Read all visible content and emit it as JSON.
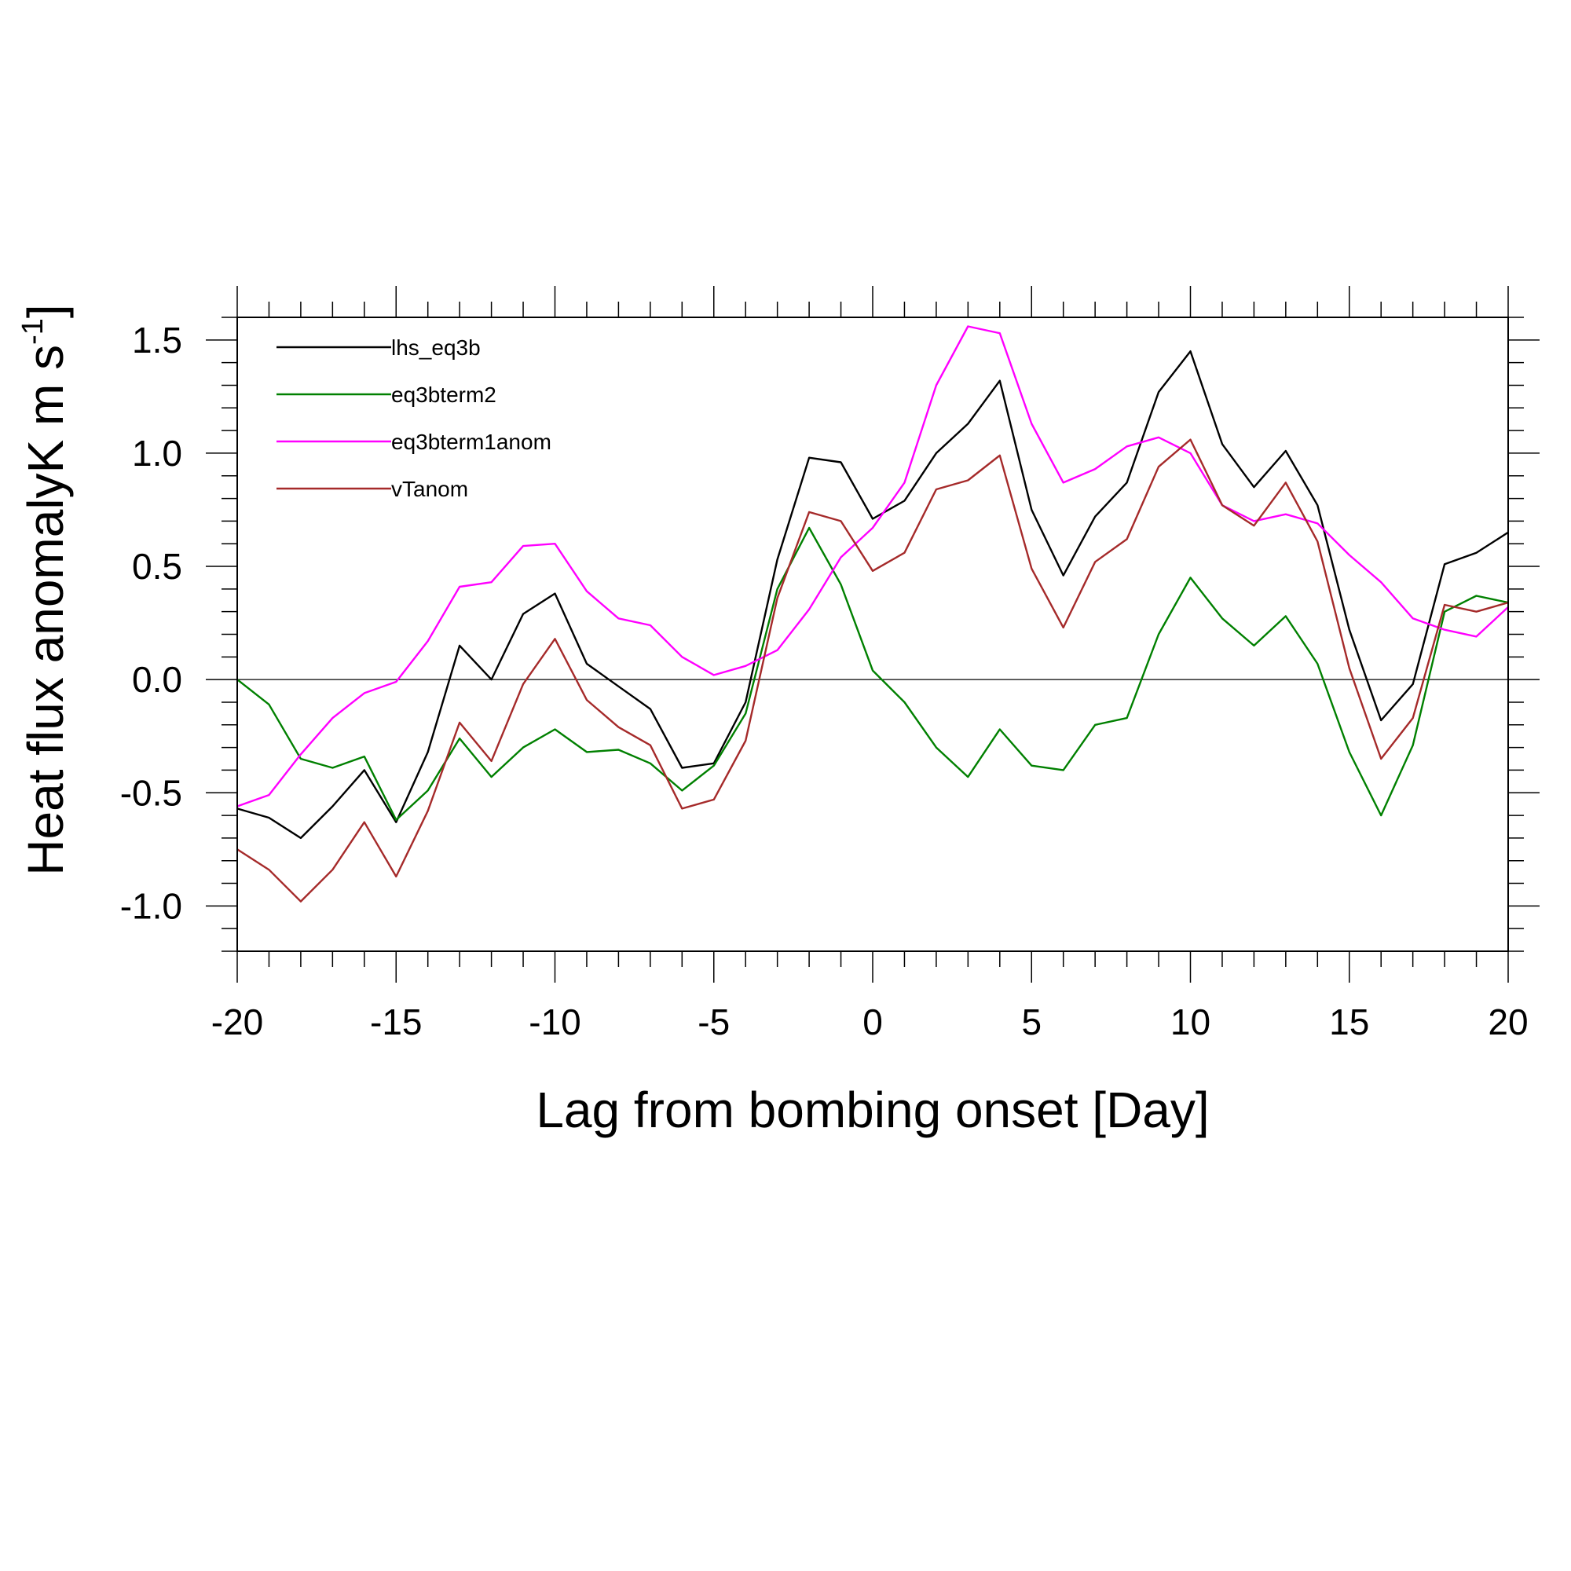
{
  "chart_data": {
    "type": "line",
    "title": "",
    "xlabel": "Lag from bombing onset [Day]",
    "ylabel": {
      "main": "Heat flux anomalyK m s",
      "superscript": "-1",
      "suffix": "]"
    },
    "xlim": [
      -20,
      20
    ],
    "ylim": [
      -1.2,
      1.6
    ],
    "x_ticks": [
      -20,
      -15,
      -10,
      -5,
      0,
      5,
      10,
      15,
      20
    ],
    "x_tick_labels": [
      "-20",
      "-15",
      "-10",
      "-5",
      "0",
      "5",
      "10",
      "15",
      "20"
    ],
    "y_ticks": [
      -1.0,
      -0.5,
      0.0,
      0.5,
      1.0,
      1.5
    ],
    "y_tick_labels": [
      "-1.0",
      "-0.5",
      "0.0",
      "0.5",
      "1.0",
      "1.5"
    ],
    "grid": false,
    "zero_line": true,
    "legend_position": "top-left",
    "x": [
      -20,
      -19,
      -18,
      -17,
      -16,
      -15,
      -14,
      -13,
      -12,
      -11,
      -10,
      -9,
      -8,
      -7,
      -6,
      -5,
      -4,
      -3,
      -2,
      -1,
      0,
      1,
      2,
      3,
      4,
      5,
      6,
      7,
      8,
      9,
      10,
      11,
      12,
      13,
      14,
      15,
      16,
      17,
      18,
      19,
      20
    ],
    "series": [
      {
        "name": "lhs_eq3b",
        "color": "#000000",
        "values": [
          -0.57,
          -0.61,
          -0.7,
          -0.56,
          -0.4,
          -0.63,
          -0.32,
          0.15,
          0.0,
          0.29,
          0.38,
          0.07,
          -0.03,
          -0.13,
          -0.39,
          -0.37,
          -0.1,
          0.53,
          0.98,
          0.96,
          0.71,
          0.79,
          1.0,
          1.13,
          1.32,
          0.75,
          0.46,
          0.72,
          0.87,
          1.27,
          1.45,
          1.04,
          0.85,
          1.01,
          0.77,
          0.22,
          -0.18,
          -0.02,
          0.51,
          0.56,
          0.65
        ]
      },
      {
        "name": "eq3bterm2",
        "color": "#008000",
        "values": [
          0.0,
          -0.11,
          -0.35,
          -0.39,
          -0.34,
          -0.62,
          -0.49,
          -0.26,
          -0.43,
          -0.3,
          -0.22,
          -0.32,
          -0.31,
          -0.37,
          -0.49,
          -0.38,
          -0.15,
          0.4,
          0.67,
          0.42,
          0.04,
          -0.1,
          -0.3,
          -0.43,
          -0.22,
          -0.38,
          -0.4,
          -0.2,
          -0.17,
          0.2,
          0.45,
          0.27,
          0.15,
          0.28,
          0.07,
          -0.32,
          -0.6,
          -0.29,
          0.3,
          0.37,
          0.34
        ]
      },
      {
        "name": "eq3bterm1anom",
        "color": "#ff00ff",
        "values": [
          -0.56,
          -0.51,
          -0.33,
          -0.17,
          -0.06,
          -0.01,
          0.17,
          0.41,
          0.43,
          0.59,
          0.6,
          0.39,
          0.27,
          0.24,
          0.1,
          0.02,
          0.06,
          0.13,
          0.31,
          0.54,
          0.67,
          0.87,
          1.3,
          1.56,
          1.53,
          1.13,
          0.87,
          0.93,
          1.03,
          1.07,
          1.0,
          0.77,
          0.7,
          0.73,
          0.69,
          0.55,
          0.43,
          0.27,
          0.22,
          0.19,
          0.32
        ]
      },
      {
        "name": "vTanom",
        "color": "#a52a2a",
        "values": [
          -0.75,
          -0.84,
          -0.98,
          -0.84,
          -0.63,
          -0.87,
          -0.58,
          -0.19,
          -0.36,
          -0.02,
          0.18,
          -0.09,
          -0.21,
          -0.29,
          -0.57,
          -0.53,
          -0.27,
          0.36,
          0.74,
          0.7,
          0.48,
          0.56,
          0.84,
          0.88,
          0.99,
          0.49,
          0.23,
          0.52,
          0.62,
          0.94,
          1.06,
          0.77,
          0.68,
          0.87,
          0.61,
          0.05,
          -0.35,
          -0.17,
          0.33,
          0.3,
          0.34
        ]
      }
    ]
  }
}
